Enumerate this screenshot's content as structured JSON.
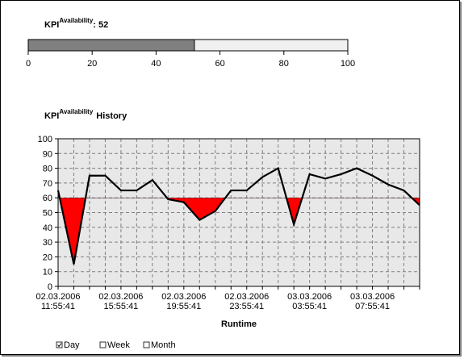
{
  "chart_data": [
    {
      "type": "gauge",
      "title": "KPI",
      "title_superscript": "Availability",
      "values": [
        52
      ],
      "value_labels": [
        ": 52"
      ],
      "color": "#808080",
      "track_color": "#f0f0f0",
      "xlim": [
        0,
        100
      ],
      "xticks": [
        0,
        20,
        40,
        60,
        80,
        100
      ]
    },
    {
      "type": "line",
      "title": "KPI",
      "title_superscript": "Availability",
      "title_suffix": "History",
      "x_label": "Runtime",
      "categories": [
        "02.03.2006\n11:55:41",
        null,
        null,
        null,
        "02.03.2006\n15:55:41",
        null,
        null,
        null,
        "02.03.2006\n19:55:41",
        null,
        null,
        null,
        "02.03.2006\n23:55:41",
        null,
        null,
        null,
        "03.03.2006\n03:55:41",
        null,
        null,
        null,
        "03.03.2006\n07:55:41",
        null,
        null,
        null
      ],
      "values": [
        65,
        15,
        75,
        75,
        65,
        65,
        72,
        59,
        57,
        45,
        51,
        65,
        65,
        74,
        80,
        42,
        76,
        73,
        76,
        80,
        75,
        69,
        65,
        55
      ],
      "color": "#000000",
      "threshold": 60,
      "threshold_fill": "#ff0000",
      "ylim": [
        0,
        100
      ],
      "yticks": [
        0,
        10,
        20,
        30,
        40,
        50,
        60,
        70,
        80,
        90,
        100
      ],
      "grid": true
    }
  ],
  "controls": [
    {
      "label": "Day",
      "checked": true
    },
    {
      "label": "Week",
      "checked": false
    },
    {
      "label": "Month",
      "checked": false
    }
  ]
}
